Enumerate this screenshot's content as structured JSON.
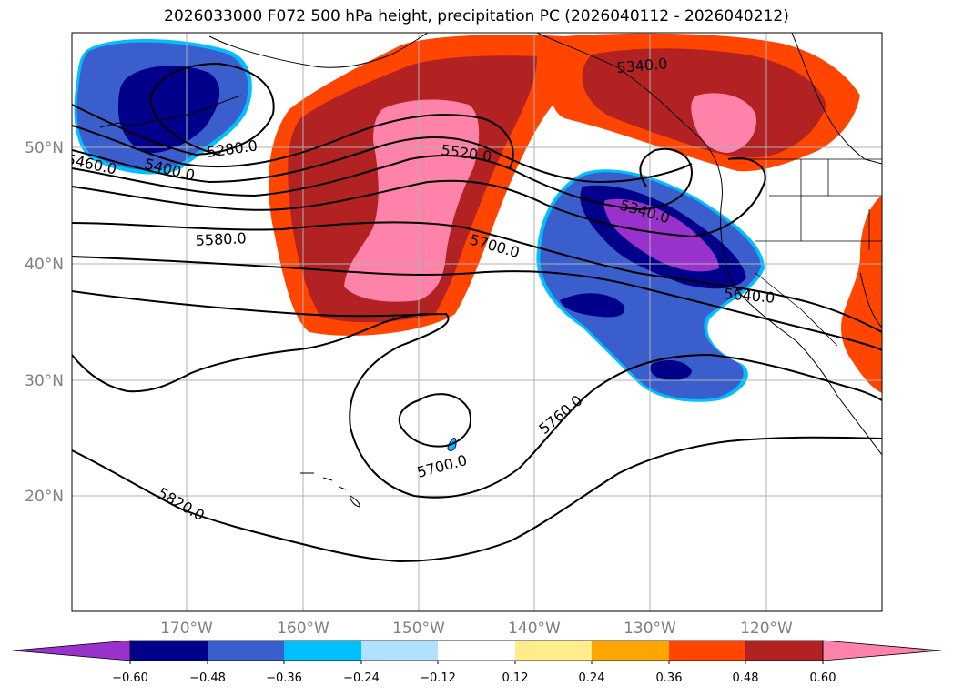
{
  "title": "2026033000 F072 500 hPa height, precipitation PC (2026040112 - 2026040212)",
  "lat_labels": [
    "50°N",
    "40°N",
    "30°N",
    "20°N"
  ],
  "lon_labels": [
    "170°W",
    "160°W",
    "150°W",
    "140°W",
    "130°W",
    "120°W"
  ],
  "contour_labels": [
    "5460.0",
    "5400.0",
    "5280.0",
    "5520.0",
    "5340.0",
    "5580.0",
    "5700.0",
    "5340.0",
    "5640.0",
    "5760.0",
    "5700.0",
    "5820.0"
  ],
  "colorbar": {
    "ticks": [
      "−0.60",
      "−0.48",
      "−0.36",
      "−0.24",
      "−0.12",
      "0.12",
      "0.24",
      "0.36",
      "0.48",
      "0.60"
    ],
    "colors": [
      "#9932CC",
      "#00008B",
      "#3A5FCD",
      "#00BFFF",
      "#B0E2FF",
      "#FFFFFF",
      "#FFEC8B",
      "#FFA500",
      "#FF4500",
      "#B22222",
      "#FF82AB"
    ]
  },
  "colors": {
    "pink": "#FF82AB",
    "firebrick": "#B22222",
    "orangered": "#FF4500",
    "royalblue": "#3A5FCD",
    "navy": "#00008B",
    "purple": "#9932CC",
    "skyblue": "#00BFFF"
  }
}
